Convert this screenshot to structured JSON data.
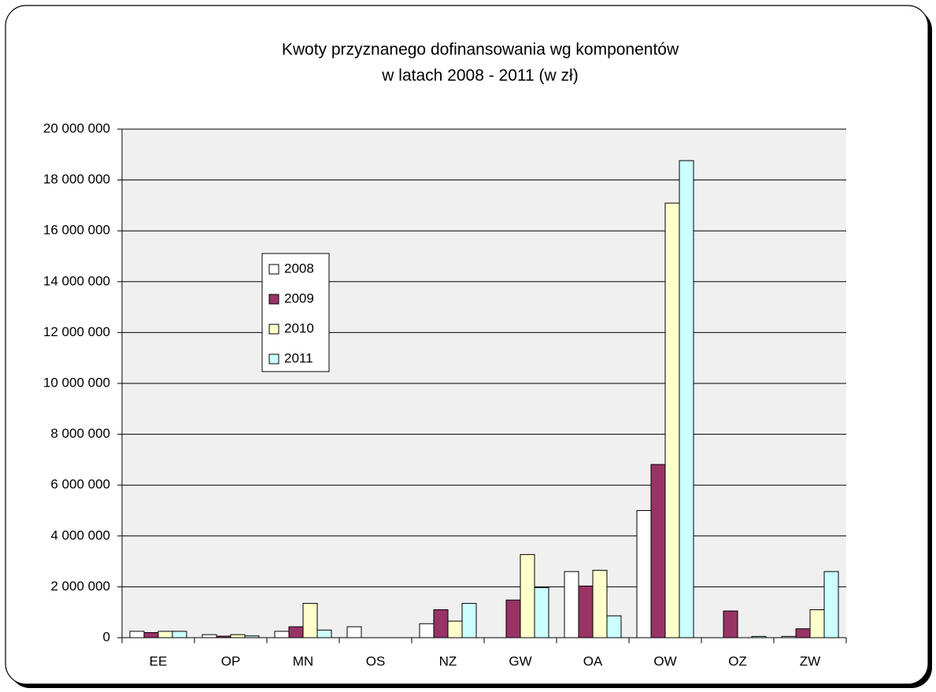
{
  "chart_data": {
    "type": "bar",
    "title": [
      "Kwoty przyznanego dofinansowania wg komponentów",
      "w latach 2008 - 2011 (w zł)"
    ],
    "categories": [
      "EE",
      "OP",
      "MN",
      "OS",
      "NZ",
      "GW",
      "OA",
      "OW",
      "OZ",
      "ZW"
    ],
    "series": [
      {
        "name": "2008",
        "color": "#ffffff",
        "values": [
          250000,
          120000,
          250000,
          430000,
          550000,
          0,
          2600000,
          5000000,
          0,
          50000
        ]
      },
      {
        "name": "2009",
        "color": "#993366",
        "values": [
          200000,
          60000,
          430000,
          0,
          1100000,
          1480000,
          2030000,
          6810000,
          1050000,
          350000
        ]
      },
      {
        "name": "2010",
        "color": "#ffffcc",
        "values": [
          250000,
          120000,
          1350000,
          0,
          650000,
          3270000,
          2650000,
          17090000,
          0,
          1100000
        ]
      },
      {
        "name": "2011",
        "color": "#ccffff",
        "values": [
          250000,
          70000,
          300000,
          0,
          1350000,
          1970000,
          860000,
          18760000,
          50000,
          2600000
        ]
      }
    ],
    "ylim": [
      0,
      20000000
    ],
    "yticks": [
      {
        "value": 0,
        "label": "0"
      },
      {
        "value": 2000000,
        "label": "2 000 000"
      },
      {
        "value": 4000000,
        "label": "4 000 000"
      },
      {
        "value": 6000000,
        "label": "6 000 000"
      },
      {
        "value": 8000000,
        "label": "8 000 000"
      },
      {
        "value": 10000000,
        "label": "10 000 000"
      },
      {
        "value": 12000000,
        "label": "12 000 000"
      },
      {
        "value": 14000000,
        "label": "14 000 000"
      },
      {
        "value": 16000000,
        "label": "16 000 000"
      },
      {
        "value": 18000000,
        "label": "18 000 000"
      },
      {
        "value": 20000000,
        "label": "20 000 000"
      }
    ],
    "grid": true
  }
}
